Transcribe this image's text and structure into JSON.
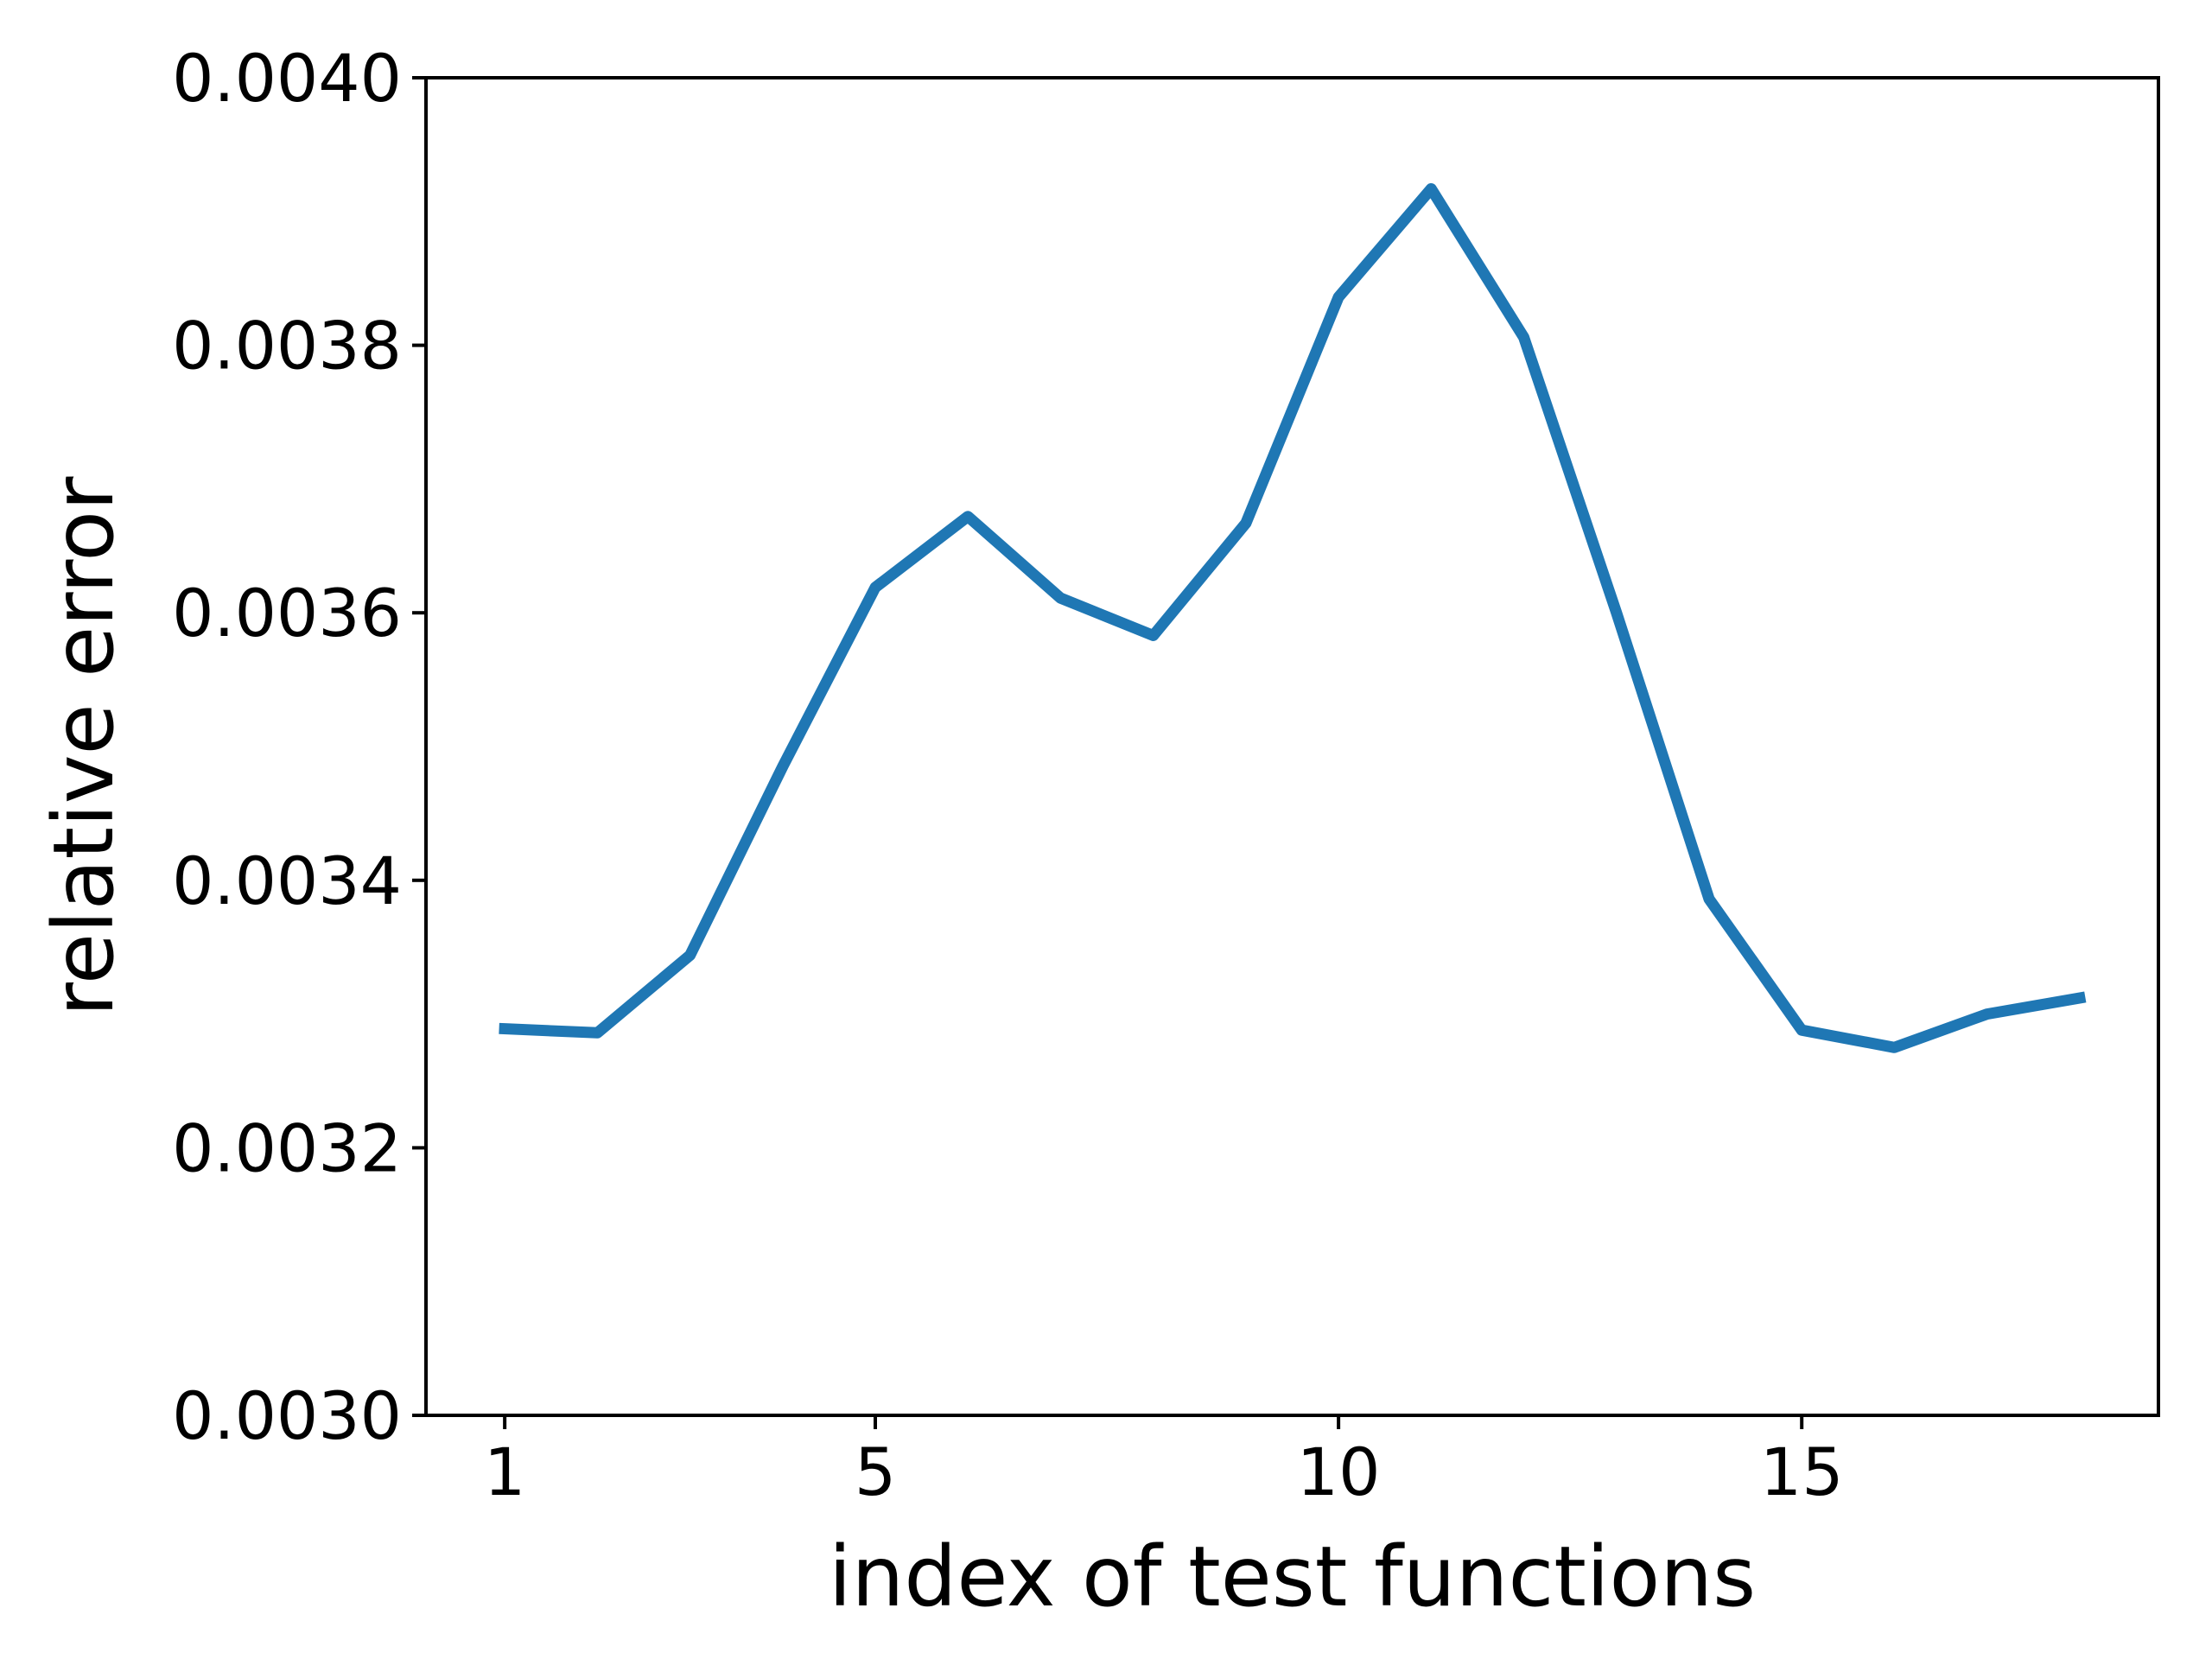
{
  "page": {
    "background": "#ffffff"
  },
  "chart_data": {
    "type": "line",
    "title": "",
    "xlabel": "index of test functions",
    "ylabel": "relative error",
    "x": [
      1,
      2,
      3,
      4,
      5,
      6,
      7,
      8,
      9,
      10,
      11,
      12,
      13,
      14,
      15,
      16,
      17,
      18
    ],
    "y": [
      0.003289,
      0.003286,
      0.003344,
      0.003485,
      0.003619,
      0.003672,
      0.003611,
      0.003583,
      0.003667,
      0.003836,
      0.003917,
      0.003806,
      0.0036,
      0.003386,
      0.003288,
      0.003275,
      0.0033,
      0.003312
    ],
    "xlim": [
      0.15,
      18.85
    ],
    "ylim": [
      0.003,
      0.004
    ],
    "xticks": {
      "values": [
        1,
        5,
        10,
        15
      ],
      "labels": [
        "1",
        "5",
        "10",
        "15"
      ]
    },
    "yticks": {
      "values": [
        0.003,
        0.0032,
        0.0034,
        0.0036,
        0.0038,
        0.004
      ],
      "labels": [
        "0.0030",
        "0.0032",
        "0.0034",
        "0.0036",
        "0.0038",
        "0.0040"
      ]
    },
    "grid": false,
    "legend": null,
    "line_color": "#1f77b4",
    "axis_color": "#000000"
  }
}
